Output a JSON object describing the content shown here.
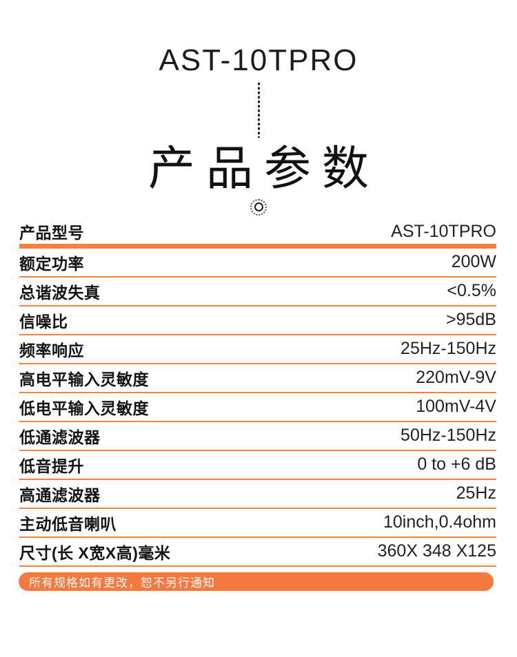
{
  "accent_color": "#F4813F",
  "header": {
    "model": "AST-10TPRO",
    "section_title": "产品参数"
  },
  "spec_table": {
    "rows": [
      {
        "label": "产品型号",
        "value": "AST-10TPRO"
      },
      {
        "label": "额定功率",
        "value": "200W"
      },
      {
        "label": "总谐波失真",
        "value": "<0.5%"
      },
      {
        "label": "信噪比",
        "value": ">95dB"
      },
      {
        "label": "频率响应",
        "value": "25Hz-150Hz"
      },
      {
        "label": "高电平输入灵敏度",
        "value": "220mV-9V"
      },
      {
        "label": "低电平输入灵敏度",
        "value": "100mV-4V"
      },
      {
        "label": "低通滤波器",
        "value": "50Hz-150Hz"
      },
      {
        "label": "低音提升",
        "value": "0 to +6 dB"
      },
      {
        "label": "高通滤波器",
        "value": "25Hz"
      },
      {
        "label": "主动低音喇叭",
        "value": "10inch,0.4ohm"
      },
      {
        "label": "尺寸(长 X宽X高)毫米",
        "value": "360X 348 X125"
      }
    ]
  },
  "footer": {
    "note": "所有规格如有更改，恕不另行通知"
  }
}
